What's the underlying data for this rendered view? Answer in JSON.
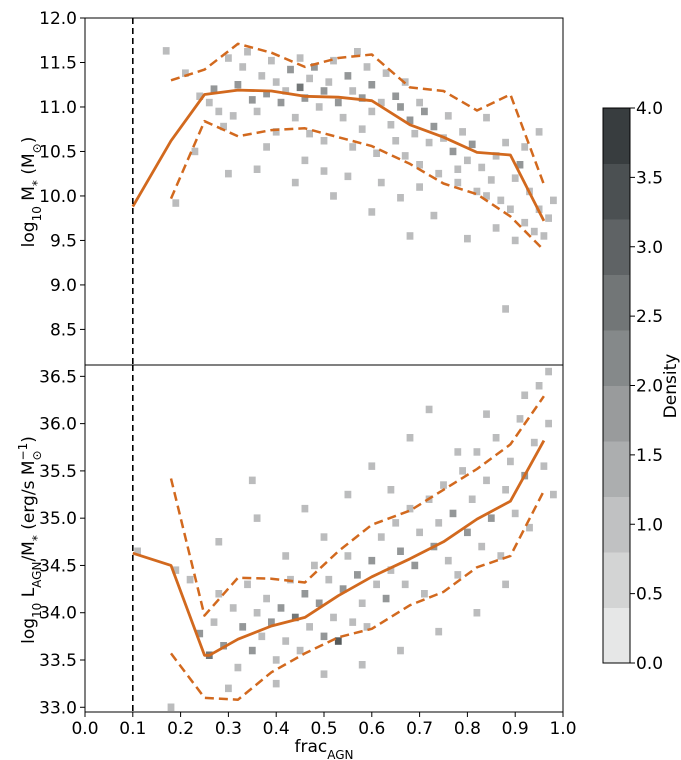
{
  "colors": {
    "median": "#d2691e",
    "threshold": "#000000",
    "frame": "#000000"
  },
  "chart_data": [
    {
      "type": "heatmap",
      "panel": "top",
      "xlabel": "frac_AGN",
      "ylabel_parts": {
        "prefix": "log",
        "sub": "10",
        "main": " M",
        "sub2": "*",
        "unit": " (M",
        "unitsub": "⊙",
        "close": ")"
      },
      "xlim": [
        0.0,
        1.0
      ],
      "ylim": [
        8.1,
        12.0
      ],
      "yticks": [
        8.5,
        9.0,
        9.5,
        10.0,
        10.5,
        11.0,
        11.5,
        12.0
      ],
      "ytick_labels": [
        "8.5",
        "9.0",
        "9.5",
        "10.0",
        "10.5",
        "11.0",
        "11.5",
        "12.0"
      ],
      "vline_x": 0.1,
      "median": {
        "x": [
          0.1,
          0.18,
          0.25,
          0.32,
          0.39,
          0.46,
          0.53,
          0.6,
          0.68,
          0.75,
          0.82,
          0.89,
          0.96
        ],
        "y": [
          9.88,
          10.62,
          11.14,
          11.19,
          11.18,
          11.12,
          11.11,
          11.07,
          10.8,
          10.66,
          10.49,
          10.46,
          9.72
        ]
      },
      "upper": {
        "x": [
          0.18,
          0.25,
          0.32,
          0.39,
          0.46,
          0.53,
          0.6,
          0.68,
          0.75,
          0.82,
          0.89,
          0.96
        ],
        "y": [
          11.3,
          11.42,
          11.71,
          11.61,
          11.45,
          11.55,
          11.59,
          11.22,
          11.18,
          10.96,
          11.14,
          10.13
        ]
      },
      "lower": {
        "x": [
          0.18,
          0.25,
          0.32,
          0.39,
          0.46,
          0.53,
          0.6,
          0.68,
          0.75,
          0.82,
          0.89,
          0.96
        ],
        "y": [
          9.97,
          10.84,
          10.67,
          10.74,
          10.76,
          10.66,
          10.56,
          10.36,
          10.14,
          10.02,
          9.77,
          9.39
        ]
      },
      "cells": [
        [
          0.17,
          11.63,
          1
        ],
        [
          0.21,
          11.38,
          1
        ],
        [
          0.24,
          11.12,
          1
        ],
        [
          0.27,
          11.2,
          2
        ],
        [
          0.28,
          10.95,
          1
        ],
        [
          0.29,
          10.78,
          1
        ],
        [
          0.3,
          11.55,
          1
        ],
        [
          0.31,
          10.9,
          1
        ],
        [
          0.32,
          11.25,
          2
        ],
        [
          0.33,
          11.45,
          1
        ],
        [
          0.34,
          11.62,
          1
        ],
        [
          0.35,
          11.08,
          2
        ],
        [
          0.36,
          10.95,
          1
        ],
        [
          0.37,
          11.35,
          1
        ],
        [
          0.38,
          11.15,
          2
        ],
        [
          0.39,
          11.52,
          1
        ],
        [
          0.4,
          10.72,
          1
        ],
        [
          0.4,
          11.28,
          1
        ],
        [
          0.41,
          11.05,
          2
        ],
        [
          0.42,
          11.18,
          1
        ],
        [
          0.43,
          11.42,
          2
        ],
        [
          0.44,
          10.88,
          1
        ],
        [
          0.45,
          11.22,
          3
        ],
        [
          0.45,
          11.55,
          1
        ],
        [
          0.46,
          11.1,
          2
        ],
        [
          0.47,
          10.7,
          1
        ],
        [
          0.47,
          11.32,
          1
        ],
        [
          0.48,
          11.45,
          2
        ],
        [
          0.49,
          11.0,
          1
        ],
        [
          0.5,
          11.18,
          2
        ],
        [
          0.5,
          10.62,
          1
        ],
        [
          0.51,
          11.28,
          1
        ],
        [
          0.52,
          11.52,
          1
        ],
        [
          0.53,
          11.05,
          2
        ],
        [
          0.54,
          10.88,
          1
        ],
        [
          0.55,
          11.35,
          2
        ],
        [
          0.56,
          11.18,
          1
        ],
        [
          0.56,
          10.55,
          1
        ],
        [
          0.57,
          11.62,
          1
        ],
        [
          0.58,
          11.1,
          2
        ],
        [
          0.58,
          10.75,
          1
        ],
        [
          0.59,
          11.45,
          1
        ],
        [
          0.6,
          10.95,
          1
        ],
        [
          0.6,
          11.25,
          2
        ],
        [
          0.61,
          10.48,
          1
        ],
        [
          0.62,
          11.05,
          1
        ],
        [
          0.63,
          11.38,
          1
        ],
        [
          0.64,
          10.8,
          1
        ],
        [
          0.65,
          11.12,
          2
        ],
        [
          0.65,
          10.62,
          1
        ],
        [
          0.66,
          11.0,
          2
        ],
        [
          0.67,
          10.45,
          1
        ],
        [
          0.67,
          11.28,
          1
        ],
        [
          0.68,
          10.85,
          2
        ],
        [
          0.69,
          10.7,
          1
        ],
        [
          0.7,
          11.05,
          1
        ],
        [
          0.7,
          10.35,
          1
        ],
        [
          0.71,
          10.95,
          2
        ],
        [
          0.72,
          10.6,
          1
        ],
        [
          0.73,
          10.78,
          2
        ],
        [
          0.74,
          10.25,
          1
        ],
        [
          0.75,
          10.65,
          1
        ],
        [
          0.76,
          10.9,
          1
        ],
        [
          0.77,
          10.5,
          2
        ],
        [
          0.78,
          10.15,
          1
        ],
        [
          0.79,
          10.72,
          1
        ],
        [
          0.8,
          10.4,
          1
        ],
        [
          0.81,
          10.58,
          2
        ],
        [
          0.82,
          10.05,
          1
        ],
        [
          0.83,
          10.32,
          1
        ],
        [
          0.84,
          10.88,
          1
        ],
        [
          0.85,
          10.18,
          1
        ],
        [
          0.86,
          10.45,
          1
        ],
        [
          0.87,
          9.95,
          1
        ],
        [
          0.88,
          10.6,
          1
        ],
        [
          0.89,
          9.85,
          1
        ],
        [
          0.9,
          10.2,
          1
        ],
        [
          0.91,
          10.35,
          2
        ],
        [
          0.92,
          9.7,
          1
        ],
        [
          0.93,
          10.05,
          1
        ],
        [
          0.94,
          9.6,
          1
        ],
        [
          0.95,
          9.85,
          1
        ],
        [
          0.96,
          9.55,
          1
        ],
        [
          0.97,
          9.75,
          1
        ],
        [
          0.98,
          9.95,
          1
        ],
        [
          0.88,
          8.73,
          1
        ],
        [
          0.19,
          9.92,
          1
        ],
        [
          0.23,
          10.5,
          1
        ],
        [
          0.26,
          11.05,
          1
        ],
        [
          0.36,
          10.3,
          1
        ],
        [
          0.44,
          10.15,
          1
        ],
        [
          0.52,
          10.0,
          1
        ],
        [
          0.6,
          9.82,
          1
        ],
        [
          0.66,
          9.98,
          1
        ],
        [
          0.73,
          9.78,
          1
        ],
        [
          0.8,
          9.52,
          1
        ],
        [
          0.86,
          9.64,
          1
        ],
        [
          0.9,
          9.5,
          1
        ],
        [
          0.3,
          10.25,
          1
        ],
        [
          0.55,
          10.22,
          1
        ],
        [
          0.62,
          10.15,
          1
        ],
        [
          0.7,
          10.1,
          1
        ],
        [
          0.78,
          10.3,
          1
        ],
        [
          0.84,
          10.0,
          1
        ],
        [
          0.92,
          10.55,
          1
        ],
        [
          0.95,
          10.72,
          1
        ],
        [
          0.38,
          10.55,
          1
        ],
        [
          0.46,
          10.4,
          1
        ],
        [
          0.5,
          10.28,
          1
        ],
        [
          0.68,
          9.55,
          1
        ]
      ]
    },
    {
      "type": "heatmap",
      "panel": "bottom",
      "xlabel": "frac_AGN",
      "xlabel_parts": {
        "main": "frac",
        "sub": "AGN"
      },
      "ylabel_parts": {
        "prefix": "log",
        "sub": "10",
        "main": " L",
        "sub2": "AGN",
        "mid": "/M",
        "sub3": "*",
        "unit": " (erg/s M",
        "unitsub": "⊙",
        "unitsup": "−1",
        "close": ")"
      },
      "xlim": [
        0.0,
        1.0
      ],
      "ylim": [
        32.95,
        36.62
      ],
      "xticks": [
        0.0,
        0.1,
        0.2,
        0.3,
        0.4,
        0.5,
        0.6,
        0.7,
        0.8,
        0.9,
        1.0
      ],
      "xtick_labels": [
        "0.0",
        "0.1",
        "0.2",
        "0.3",
        "0.4",
        "0.5",
        "0.6",
        "0.7",
        "0.8",
        "0.9",
        "1.0"
      ],
      "yticks": [
        33.0,
        33.5,
        34.0,
        34.5,
        35.0,
        35.5,
        36.0,
        36.5
      ],
      "ytick_labels": [
        "33.0",
        "33.5",
        "34.0",
        "34.5",
        "35.0",
        "35.5",
        "36.0",
        "36.5"
      ],
      "vline_x": 0.1,
      "median": {
        "x": [
          0.1,
          0.18,
          0.25,
          0.26,
          0.32,
          0.39,
          0.46,
          0.53,
          0.6,
          0.68,
          0.75,
          0.82,
          0.89,
          0.96
        ],
        "y": [
          34.63,
          34.5,
          33.55,
          33.55,
          33.72,
          33.86,
          33.95,
          34.18,
          34.38,
          34.57,
          34.75,
          34.99,
          35.18,
          35.82
        ]
      },
      "upper": {
        "x": [
          0.18,
          0.25,
          0.32,
          0.39,
          0.46,
          0.53,
          0.6,
          0.68,
          0.75,
          0.82,
          0.89,
          0.96
        ],
        "y": [
          35.42,
          33.97,
          34.37,
          34.36,
          34.32,
          34.65,
          34.93,
          35.08,
          35.3,
          35.52,
          35.78,
          36.29
        ]
      },
      "lower": {
        "x": [
          0.18,
          0.25,
          0.32,
          0.39,
          0.46,
          0.53,
          0.6,
          0.68,
          0.75,
          0.82,
          0.89,
          0.96
        ],
        "y": [
          33.57,
          33.1,
          33.08,
          33.37,
          33.57,
          33.74,
          33.83,
          34.08,
          34.22,
          34.48,
          34.6,
          35.29
        ]
      },
      "cells": [
        [
          0.11,
          34.65,
          1
        ],
        [
          0.19,
          34.45,
          1
        ],
        [
          0.24,
          33.78,
          2
        ],
        [
          0.26,
          33.55,
          3
        ],
        [
          0.27,
          33.9,
          1
        ],
        [
          0.28,
          34.2,
          1
        ],
        [
          0.29,
          33.65,
          2
        ],
        [
          0.31,
          34.05,
          1
        ],
        [
          0.32,
          33.42,
          1
        ],
        [
          0.33,
          33.85,
          2
        ],
        [
          0.34,
          34.3,
          1
        ],
        [
          0.35,
          33.6,
          2
        ],
        [
          0.36,
          34.0,
          1
        ],
        [
          0.37,
          33.75,
          1
        ],
        [
          0.38,
          34.15,
          1
        ],
        [
          0.39,
          33.9,
          2
        ],
        [
          0.4,
          33.5,
          1
        ],
        [
          0.41,
          34.05,
          2
        ],
        [
          0.42,
          33.7,
          1
        ],
        [
          0.43,
          34.35,
          1
        ],
        [
          0.44,
          33.95,
          3
        ],
        [
          0.45,
          33.6,
          1
        ],
        [
          0.46,
          34.2,
          2
        ],
        [
          0.47,
          33.85,
          1
        ],
        [
          0.48,
          34.5,
          1
        ],
        [
          0.49,
          34.1,
          2
        ],
        [
          0.5,
          33.75,
          2
        ],
        [
          0.51,
          34.35,
          1
        ],
        [
          0.52,
          33.95,
          1
        ],
        [
          0.53,
          33.7,
          4
        ],
        [
          0.54,
          34.25,
          2
        ],
        [
          0.55,
          34.6,
          1
        ],
        [
          0.56,
          33.9,
          1
        ],
        [
          0.57,
          34.4,
          2
        ],
        [
          0.58,
          34.1,
          1
        ],
        [
          0.59,
          33.85,
          1
        ],
        [
          0.6,
          34.55,
          2
        ],
        [
          0.61,
          34.3,
          1
        ],
        [
          0.62,
          34.8,
          1
        ],
        [
          0.63,
          34.15,
          2
        ],
        [
          0.64,
          34.45,
          1
        ],
        [
          0.65,
          34.95,
          1
        ],
        [
          0.66,
          34.65,
          2
        ],
        [
          0.67,
          34.3,
          1
        ],
        [
          0.68,
          35.1,
          1
        ],
        [
          0.69,
          34.5,
          2
        ],
        [
          0.7,
          34.85,
          1
        ],
        [
          0.71,
          34.2,
          1
        ],
        [
          0.72,
          35.2,
          1
        ],
        [
          0.73,
          34.7,
          2
        ],
        [
          0.74,
          34.95,
          1
        ],
        [
          0.75,
          35.35,
          1
        ],
        [
          0.76,
          34.55,
          1
        ],
        [
          0.77,
          35.05,
          2
        ],
        [
          0.78,
          34.4,
          1
        ],
        [
          0.79,
          35.5,
          1
        ],
        [
          0.8,
          34.85,
          2
        ],
        [
          0.81,
          35.2,
          1
        ],
        [
          0.82,
          35.7,
          1
        ],
        [
          0.83,
          34.7,
          1
        ],
        [
          0.84,
          35.4,
          1
        ],
        [
          0.85,
          35.0,
          2
        ],
        [
          0.86,
          35.85,
          1
        ],
        [
          0.87,
          34.6,
          1
        ],
        [
          0.88,
          35.3,
          1
        ],
        [
          0.89,
          35.6,
          1
        ],
        [
          0.9,
          35.05,
          1
        ],
        [
          0.91,
          36.05,
          1
        ],
        [
          0.92,
          35.45,
          2
        ],
        [
          0.93,
          34.9,
          1
        ],
        [
          0.94,
          35.8,
          1
        ],
        [
          0.95,
          36.4,
          1
        ],
        [
          0.96,
          35.55,
          1
        ],
        [
          0.97,
          36.0,
          1
        ],
        [
          0.98,
          35.25,
          1
        ],
        [
          0.97,
          36.55,
          1
        ],
        [
          0.92,
          36.3,
          1
        ],
        [
          0.72,
          36.15,
          1
        ],
        [
          0.68,
          35.85,
          1
        ],
        [
          0.6,
          35.55,
          1
        ],
        [
          0.55,
          35.25,
          1
        ],
        [
          0.46,
          35.1,
          1
        ],
        [
          0.36,
          35.0,
          1
        ],
        [
          0.35,
          35.4,
          1
        ],
        [
          0.28,
          34.75,
          1
        ],
        [
          0.22,
          34.35,
          1
        ],
        [
          0.3,
          33.2,
          1
        ],
        [
          0.4,
          33.25,
          1
        ],
        [
          0.5,
          33.35,
          1
        ],
        [
          0.58,
          33.45,
          1
        ],
        [
          0.66,
          33.6,
          1
        ],
        [
          0.74,
          33.8,
          1
        ],
        [
          0.82,
          34.0,
          1
        ],
        [
          0.88,
          34.3,
          1
        ],
        [
          0.18,
          33.0,
          1
        ],
        [
          0.64,
          35.3,
          1
        ],
        [
          0.78,
          35.7,
          1
        ],
        [
          0.84,
          36.1,
          1
        ],
        [
          0.5,
          34.8,
          1
        ],
        [
          0.42,
          34.6,
          1
        ]
      ]
    }
  ],
  "colorbar": {
    "label": "Density",
    "min": 0.0,
    "max": 4.0,
    "ticks": [
      0.0,
      0.5,
      1.0,
      1.5,
      2.0,
      2.5,
      3.0,
      3.5,
      4.0
    ],
    "tick_labels": [
      "0.0",
      "0.5",
      "1.0",
      "1.5",
      "2.0",
      "2.5",
      "3.0",
      "3.5",
      "4.0"
    ],
    "levels": 10,
    "color_low": "#f0f0f0",
    "color_high": "#2e3436"
  }
}
